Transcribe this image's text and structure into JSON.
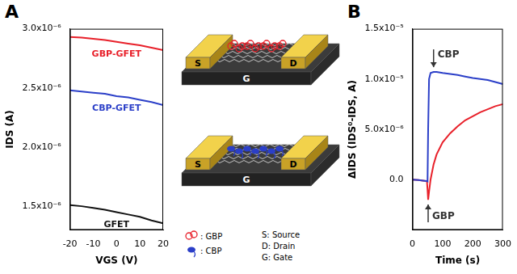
{
  "chart_data": [
    {
      "panel": "A",
      "type": "line",
      "x_label": "VGS (V)",
      "y_label": "IDS (A)",
      "xlim": [
        -20,
        20
      ],
      "xticks": [
        -20,
        -10,
        0,
        10,
        20
      ],
      "ylim": [
        1.3e-06,
        3e-06
      ],
      "yticks": [
        {
          "value": 1.5e-06,
          "label": "1.5x10⁻⁶"
        },
        {
          "value": 2e-06,
          "label": "2.0x10⁻⁶"
        },
        {
          "value": 2.5e-06,
          "label": "2.5x10⁻⁶"
        },
        {
          "value": 3e-06,
          "label": "3.0x10⁻⁶"
        }
      ],
      "grid": false,
      "x": [
        -20,
        -15,
        -10,
        -5,
        0,
        5,
        10,
        15,
        20
      ],
      "series": [
        {
          "name": "GBP-GFET",
          "color": "#e8202a",
          "values": [
            2.93e-06,
            2.925e-06,
            2.915e-06,
            2.905e-06,
            2.89e-06,
            2.875e-06,
            2.86e-06,
            2.84e-06,
            2.82e-06
          ]
        },
        {
          "name": "CBP-GFET",
          "color": "#2b3fc8",
          "values": [
            2.48e-06,
            2.47e-06,
            2.46e-06,
            2.45e-06,
            2.43e-06,
            2.42e-06,
            2.4e-06,
            2.38e-06,
            2.355e-06
          ]
        },
        {
          "name": "GFET",
          "color": "#111111",
          "values": [
            1.51e-06,
            1.5e-06,
            1.485e-06,
            1.47e-06,
            1.45e-06,
            1.43e-06,
            1.41e-06,
            1.38e-06,
            1.355e-06
          ]
        }
      ]
    },
    {
      "panel": "B",
      "type": "line",
      "x_label": "Time (s)",
      "y_label": "ΔIDS (IDS⁰-IDS, A)",
      "xlim": [
        0,
        300
      ],
      "xticks": [
        0,
        100,
        200,
        300
      ],
      "ylim": [
        -5e-06,
        1.5e-05
      ],
      "yticks": [
        {
          "value": 0,
          "label": "0.0"
        },
        {
          "value": 5e-06,
          "label": "5.0x10⁻⁶"
        },
        {
          "value": 1e-05,
          "label": "1.0x10⁻⁵"
        },
        {
          "value": 1.5e-05,
          "label": "1.5x10⁻⁵"
        }
      ],
      "grid": false,
      "x": [
        0,
        10,
        20,
        30,
        40,
        48,
        50,
        52,
        55,
        60,
        70,
        80,
        100,
        125,
        150,
        175,
        200,
        225,
        250,
        275,
        300
      ],
      "series": [
        {
          "name": "CBP",
          "color": "#2b3fc8",
          "values": [
            0,
            -2e-08,
            -5e-08,
            -8e-08,
            -1.2e-07,
            -1.5e-07,
            -1.8e-07,
            5e-06,
            1e-05,
            1.06e-05,
            1.07e-05,
            1.07e-05,
            1.06e-05,
            1.05e-05,
            1.04e-05,
            1.025e-05,
            1.01e-05,
            1e-05,
            9.9e-06,
            9.7e-06,
            9.5e-06
          ]
        },
        {
          "name": "GBP",
          "color": "#e8202a",
          "values": [
            0,
            -2e-08,
            -5e-08,
            -8e-08,
            -1.2e-07,
            -1.5e-07,
            -1e-06,
            -2e-06,
            -1.2e-06,
            0,
            1.5e-06,
            2.5e-06,
            3.7e-06,
            4.6e-06,
            5.3e-06,
            5.9e-06,
            6.3e-06,
            6.7e-06,
            7e-06,
            7.3e-06,
            7.5e-06
          ]
        }
      ]
    }
  ],
  "diagram": {
    "devices": [
      {
        "source": "S",
        "gate": "G",
        "drain": "D",
        "color": "#e8202a"
      },
      {
        "source": "S",
        "gate": "G",
        "drain": "D",
        "color": "#2b3fc8"
      }
    ],
    "key": {
      "molecules": [
        {
          "label": ": GBP",
          "color": "#e8202a"
        },
        {
          "label": ": CBP",
          "color": "#2b3fc8"
        }
      ],
      "terms": [
        "S: Source",
        "D: Drain",
        "G: Gate"
      ]
    }
  }
}
